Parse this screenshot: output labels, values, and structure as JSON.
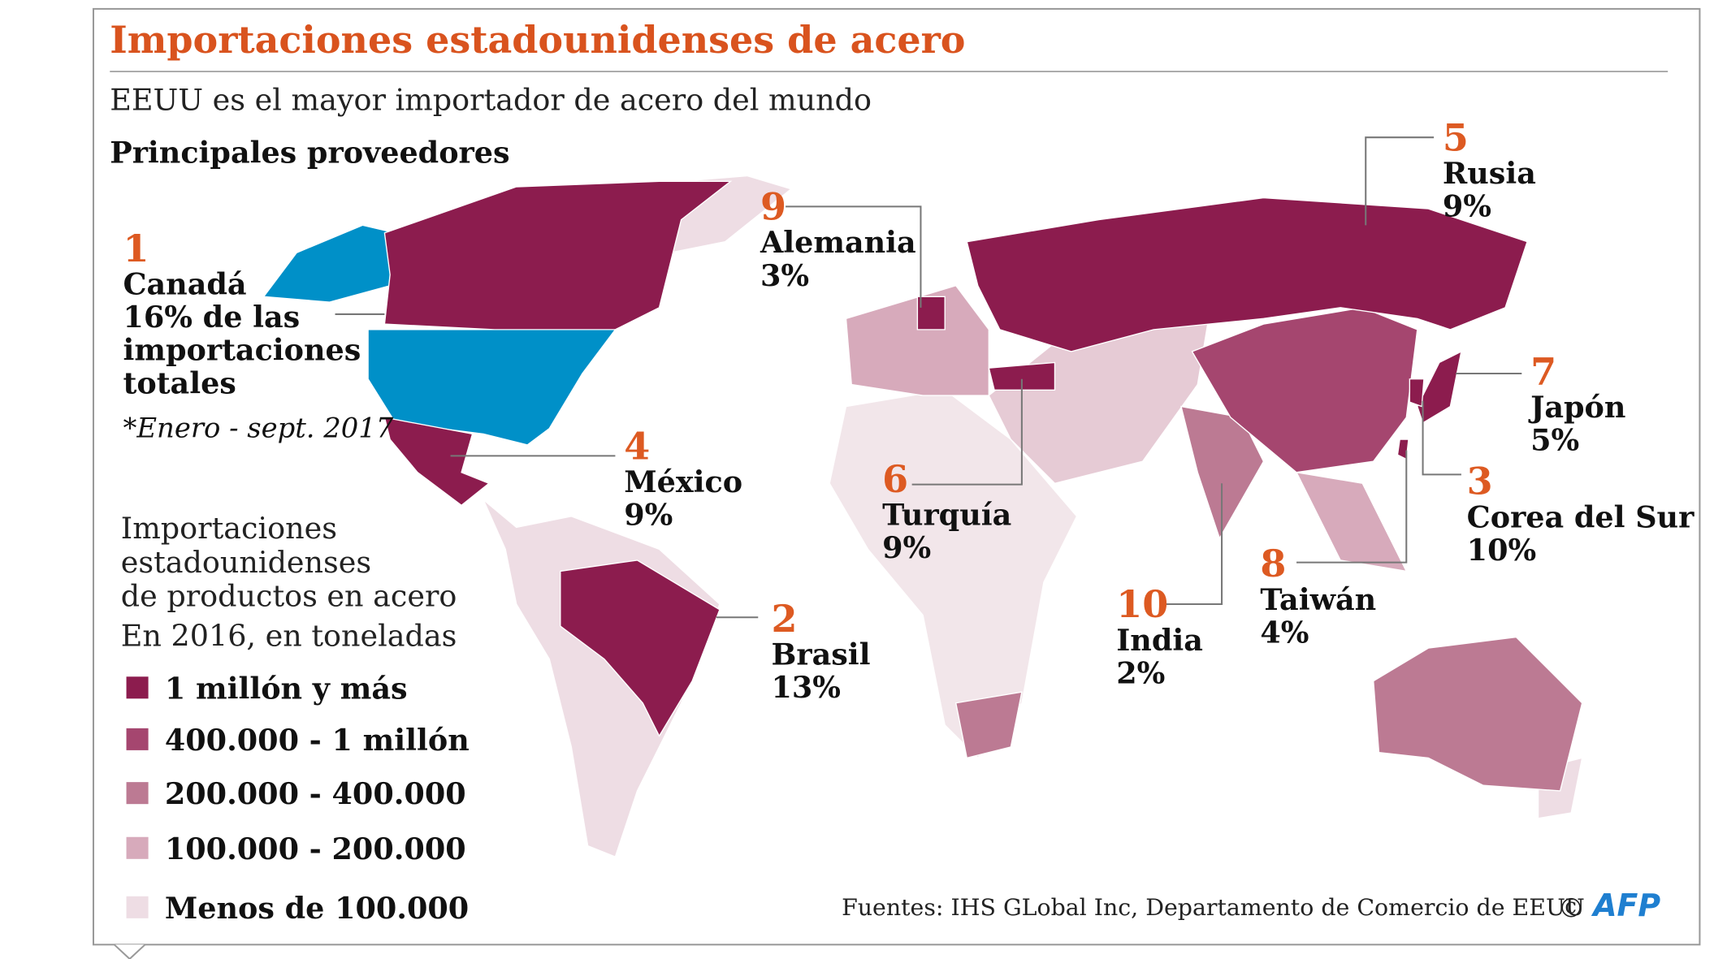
{
  "header": {
    "title": "Importaciones estadounidenses de acero",
    "subtitle": "EEUU es el mayor importador de acero del mundo",
    "section": "Principales proveedores"
  },
  "suppliers": [
    {
      "rank": "1",
      "name": "Canadá",
      "share": [
        "16% de las",
        "importaciones",
        "totales"
      ]
    },
    {
      "rank": "2",
      "name": "Brasil",
      "share": [
        "13%"
      ]
    },
    {
      "rank": "3",
      "name": "Corea del Sur",
      "share": [
        "10%"
      ]
    },
    {
      "rank": "4",
      "name": "México",
      "share": [
        "9%"
      ]
    },
    {
      "rank": "5",
      "name": "Rusia",
      "share": [
        "9%"
      ]
    },
    {
      "rank": "6",
      "name": "Turquía",
      "share": [
        "9%"
      ]
    },
    {
      "rank": "7",
      "name": "Japón",
      "share": [
        "5%"
      ]
    },
    {
      "rank": "8",
      "name": "Taiwán",
      "share": [
        "4%"
      ]
    },
    {
      "rank": "9",
      "name": "Alemania",
      "share": [
        "3%"
      ]
    },
    {
      "rank": "10",
      "name": "India",
      "share": [
        "2%"
      ]
    }
  ],
  "note": "*Enero - sept. 2017",
  "legend": {
    "title": [
      "Importaciones",
      "estadounidenses",
      "de productos en acero",
      "En 2016, en toneladas"
    ],
    "items": [
      {
        "label": "1 millón y más",
        "color": "#8c1c4e"
      },
      {
        "label": "400.000 - 1 millón",
        "color": "#a5466f"
      },
      {
        "label": "200.000 - 400.000",
        "color": "#bc7a93"
      },
      {
        "label": "100.000 - 200.000",
        "color": "#d7aabb"
      },
      {
        "label": "Menos de 100.000",
        "color": "#eedde4"
      }
    ]
  },
  "footer": {
    "source": "Fuentes: IHS GLobal Inc, Departamento de Comercio de EEUU",
    "copyright": "©",
    "logo": "AFP"
  }
}
